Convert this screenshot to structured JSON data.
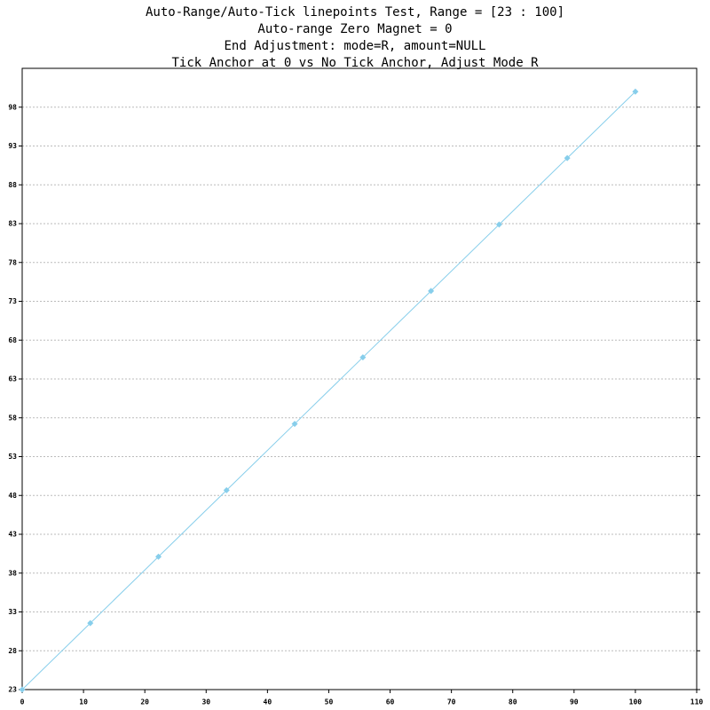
{
  "chart_data": {
    "type": "linepoints",
    "title": [
      "Auto-Range/Auto-Tick linepoints Test, Range = [23 : 100]",
      "Auto-range Zero Magnet = 0",
      "End Adjustment: mode=R, amount=NULL",
      "Tick Anchor at 0 vs No Tick Anchor, Adjust Mode R"
    ],
    "x": [
      0,
      11.11,
      22.22,
      33.33,
      44.44,
      55.56,
      66.67,
      77.78,
      88.89,
      100
    ],
    "values": [
      23,
      31.56,
      40.11,
      48.67,
      57.22,
      65.78,
      74.33,
      82.89,
      91.44,
      100
    ],
    "color": "#87ceeb",
    "xlim": [
      0,
      110
    ],
    "xticks": [
      0,
      10,
      20,
      30,
      40,
      50,
      60,
      70,
      80,
      90,
      100,
      110
    ],
    "ylim": [
      23,
      103
    ],
    "yticks": [
      23,
      28,
      33,
      38,
      43,
      48,
      53,
      58,
      63,
      68,
      73,
      78,
      83,
      88,
      93,
      98
    ],
    "grid": true
  }
}
